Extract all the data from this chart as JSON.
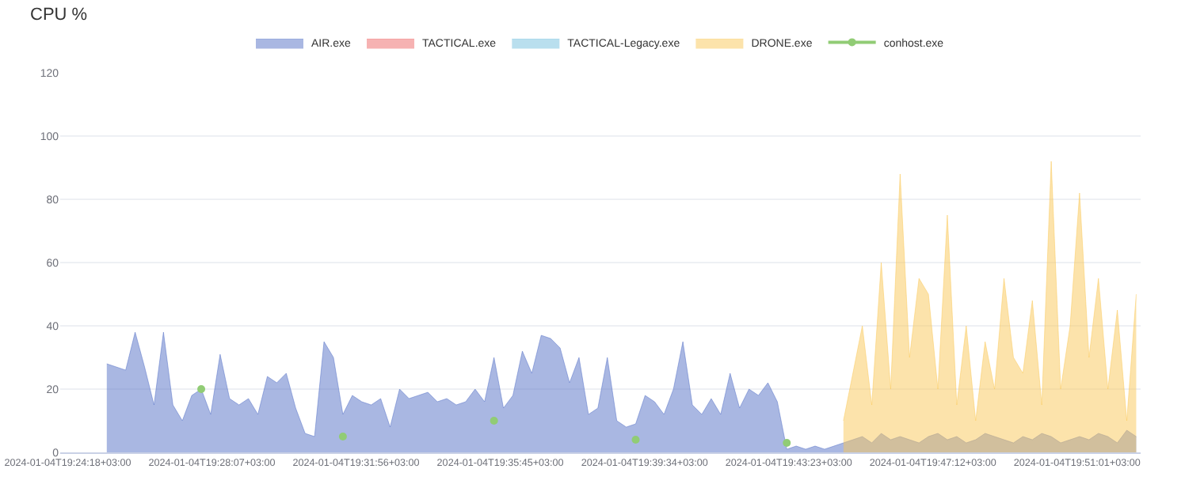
{
  "chart_data": {
    "type": "area",
    "title": "CPU %",
    "legend": "top",
    "grid": "y",
    "ylim": [
      0,
      120
    ],
    "yticks": [
      0,
      20,
      40,
      60,
      80,
      100,
      120
    ],
    "xlim": [
      "2024-01-04T19:24:06",
      "2024-01-04T19:52:42"
    ],
    "xticks": [
      {
        "value": "2024-01-04T19:24:18",
        "label": "2024-01-04T19:24:18+03:00"
      },
      {
        "value": "2024-01-04T19:28:07",
        "label": "2024-01-04T19:28:07+03:00"
      },
      {
        "value": "2024-01-04T19:31:56",
        "label": "2024-01-04T19:31:56+03:00"
      },
      {
        "value": "2024-01-04T19:35:45",
        "label": "2024-01-04T19:35:45+03:00"
      },
      {
        "value": "2024-01-04T19:39:34",
        "label": "2024-01-04T19:39:34+03:00"
      },
      {
        "value": "2024-01-04T19:43:23",
        "label": "2024-01-04T19:43:23+03:00"
      },
      {
        "value": "2024-01-04T19:47:12",
        "label": "2024-01-04T19:47:12+03:00"
      },
      {
        "value": "2024-01-04T19:51:01",
        "label": "2024-01-04T19:51:01+03:00"
      }
    ],
    "x": [
      "2024-01-04T19:25:20",
      "2024-01-04T19:25:35",
      "2024-01-04T19:25:50",
      "2024-01-04T19:26:05",
      "2024-01-04T19:26:20",
      "2024-01-04T19:26:35",
      "2024-01-04T19:26:50",
      "2024-01-04T19:27:05",
      "2024-01-04T19:27:20",
      "2024-01-04T19:27:35",
      "2024-01-04T19:27:50",
      "2024-01-04T19:28:05",
      "2024-01-04T19:28:20",
      "2024-01-04T19:28:35",
      "2024-01-04T19:28:50",
      "2024-01-04T19:29:05",
      "2024-01-04T19:29:20",
      "2024-01-04T19:29:35",
      "2024-01-04T19:29:50",
      "2024-01-04T19:30:05",
      "2024-01-04T19:30:20",
      "2024-01-04T19:30:35",
      "2024-01-04T19:30:50",
      "2024-01-04T19:31:05",
      "2024-01-04T19:31:20",
      "2024-01-04T19:31:35",
      "2024-01-04T19:31:50",
      "2024-01-04T19:32:05",
      "2024-01-04T19:32:20",
      "2024-01-04T19:32:35",
      "2024-01-04T19:32:50",
      "2024-01-04T19:33:05",
      "2024-01-04T19:33:20",
      "2024-01-04T19:33:35",
      "2024-01-04T19:33:50",
      "2024-01-04T19:34:05",
      "2024-01-04T19:34:20",
      "2024-01-04T19:34:35",
      "2024-01-04T19:34:50",
      "2024-01-04T19:35:05",
      "2024-01-04T19:35:20",
      "2024-01-04T19:35:35",
      "2024-01-04T19:35:50",
      "2024-01-04T19:36:05",
      "2024-01-04T19:36:20",
      "2024-01-04T19:36:35",
      "2024-01-04T19:36:50",
      "2024-01-04T19:37:05",
      "2024-01-04T19:37:20",
      "2024-01-04T19:37:35",
      "2024-01-04T19:37:50",
      "2024-01-04T19:38:05",
      "2024-01-04T19:38:20",
      "2024-01-04T19:38:35",
      "2024-01-04T19:38:50",
      "2024-01-04T19:39:05",
      "2024-01-04T19:39:20",
      "2024-01-04T19:39:35",
      "2024-01-04T19:39:50",
      "2024-01-04T19:40:05",
      "2024-01-04T19:40:20",
      "2024-01-04T19:40:35",
      "2024-01-04T19:40:50",
      "2024-01-04T19:41:05",
      "2024-01-04T19:41:20",
      "2024-01-04T19:41:35",
      "2024-01-04T19:41:50",
      "2024-01-04T19:42:05",
      "2024-01-04T19:42:20",
      "2024-01-04T19:42:35",
      "2024-01-04T19:42:50",
      "2024-01-04T19:43:05",
      "2024-01-04T19:43:20",
      "2024-01-04T19:43:35",
      "2024-01-04T19:43:50",
      "2024-01-04T19:44:05",
      "2024-01-04T19:44:20",
      "2024-01-04T19:44:35",
      "2024-01-04T19:44:50",
      "2024-01-04T19:45:05",
      "2024-01-04T19:45:20",
      "2024-01-04T19:45:35",
      "2024-01-04T19:45:50",
      "2024-01-04T19:46:05",
      "2024-01-04T19:46:20",
      "2024-01-04T19:46:35",
      "2024-01-04T19:46:50",
      "2024-01-04T19:47:05",
      "2024-01-04T19:47:20",
      "2024-01-04T19:47:35",
      "2024-01-04T19:47:50",
      "2024-01-04T19:48:05",
      "2024-01-04T19:48:20",
      "2024-01-04T19:48:35",
      "2024-01-04T19:48:50",
      "2024-01-04T19:49:05",
      "2024-01-04T19:49:20",
      "2024-01-04T19:49:35",
      "2024-01-04T19:49:50",
      "2024-01-04T19:50:05",
      "2024-01-04T19:50:20",
      "2024-01-04T19:50:35",
      "2024-01-04T19:50:50",
      "2024-01-04T19:51:05",
      "2024-01-04T19:51:20",
      "2024-01-04T19:51:35",
      "2024-01-04T19:51:50",
      "2024-01-04T19:52:05",
      "2024-01-04T19:52:20",
      "2024-01-04T19:52:35"
    ],
    "series": [
      {
        "name": "AIR.exe",
        "color": "#5470c6",
        "values": [
          28,
          27,
          26,
          38,
          27,
          15,
          38,
          15,
          10,
          18,
          20,
          12,
          31,
          17,
          15,
          17,
          12,
          24,
          22,
          25,
          14,
          6,
          5,
          35,
          30,
          12,
          18,
          16,
          15,
          17,
          8,
          20,
          17,
          18,
          19,
          16,
          17,
          15,
          16,
          20,
          16,
          30,
          14,
          18,
          32,
          25,
          37,
          36,
          33,
          22,
          30,
          12,
          14,
          30,
          10,
          8,
          9,
          18,
          16,
          12,
          20,
          35,
          15,
          12,
          17,
          12,
          25,
          14,
          20,
          18,
          22,
          16,
          1,
          2,
          1,
          2,
          1,
          2,
          3,
          4,
          5,
          3,
          6,
          4,
          5,
          4,
          3,
          5,
          6,
          4,
          5,
          3,
          4,
          6,
          5,
          4,
          3,
          5,
          4,
          6,
          5,
          3,
          4,
          5,
          4,
          6,
          5,
          3,
          7,
          5
        ]
      },
      {
        "name": "TACTICAL.exe",
        "color": "#ee6666",
        "values": [
          null,
          null,
          null,
          null,
          null,
          null,
          null,
          null,
          null,
          null,
          null,
          null,
          null,
          null,
          null,
          null,
          null,
          null,
          null,
          null,
          null,
          null,
          null,
          null,
          null,
          null,
          null,
          null,
          null,
          null,
          null,
          null,
          null,
          null,
          null,
          null,
          null,
          null,
          null,
          null,
          null,
          null,
          null,
          null,
          null,
          null,
          null,
          null,
          null,
          null,
          null,
          null,
          null,
          null,
          null,
          null,
          null,
          null,
          null,
          null,
          null,
          null,
          null,
          null,
          null,
          null,
          null,
          null,
          null,
          null,
          null,
          null,
          null,
          null,
          null,
          null,
          null,
          null,
          null,
          null,
          null,
          null,
          null,
          null,
          null,
          null,
          null,
          null,
          null,
          null,
          null,
          null,
          null,
          null,
          null,
          null,
          null,
          null,
          null,
          null,
          null,
          null,
          null,
          null,
          null,
          null,
          null,
          null,
          null,
          null
        ]
      },
      {
        "name": "TACTICAL-Legacy.exe",
        "color": "#73c0de",
        "values": [
          null,
          null,
          null,
          null,
          null,
          null,
          null,
          null,
          null,
          null,
          null,
          null,
          null,
          null,
          null,
          null,
          null,
          null,
          null,
          null,
          null,
          null,
          null,
          null,
          null,
          null,
          null,
          null,
          null,
          null,
          null,
          null,
          null,
          null,
          null,
          null,
          null,
          null,
          null,
          null,
          null,
          null,
          null,
          null,
          null,
          null,
          null,
          null,
          null,
          null,
          null,
          null,
          null,
          null,
          null,
          null,
          null,
          null,
          null,
          null,
          null,
          null,
          null,
          null,
          null,
          null,
          null,
          null,
          null,
          null,
          null,
          null,
          null,
          null,
          null,
          null,
          null,
          null,
          null,
          null,
          null,
          null,
          null,
          null,
          null,
          null,
          null,
          null,
          null,
          null,
          null,
          null,
          null,
          null,
          null,
          null,
          null,
          null,
          null,
          null,
          null,
          null,
          null,
          null,
          null,
          null,
          null,
          null,
          null,
          null
        ]
      },
      {
        "name": "DRONE.exe",
        "color": "#fac858",
        "values": [
          null,
          null,
          null,
          null,
          null,
          null,
          null,
          null,
          null,
          null,
          null,
          null,
          null,
          null,
          null,
          null,
          null,
          null,
          null,
          null,
          null,
          null,
          null,
          null,
          null,
          null,
          null,
          null,
          null,
          null,
          null,
          null,
          null,
          null,
          null,
          null,
          null,
          null,
          null,
          null,
          null,
          null,
          null,
          null,
          null,
          null,
          null,
          null,
          null,
          null,
          null,
          null,
          null,
          null,
          null,
          null,
          null,
          null,
          null,
          null,
          null,
          null,
          null,
          null,
          null,
          null,
          null,
          null,
          null,
          null,
          null,
          null,
          null,
          null,
          null,
          null,
          null,
          null,
          10,
          25,
          40,
          15,
          60,
          20,
          88,
          30,
          55,
          50,
          20,
          75,
          15,
          40,
          10,
          35,
          20,
          55,
          30,
          25,
          48,
          15,
          92,
          20,
          40,
          82,
          30,
          55,
          20,
          45,
          10,
          50
        ]
      },
      {
        "name": "conhost.exe",
        "type": "scatter",
        "color": "#91cc75",
        "values": [
          null,
          null,
          null,
          null,
          null,
          null,
          null,
          null,
          null,
          null,
          20,
          null,
          null,
          null,
          null,
          null,
          null,
          null,
          null,
          null,
          null,
          null,
          null,
          null,
          null,
          5,
          null,
          null,
          null,
          null,
          null,
          null,
          null,
          null,
          null,
          null,
          null,
          null,
          null,
          null,
          null,
          10,
          null,
          null,
          null,
          null,
          null,
          null,
          null,
          null,
          null,
          null,
          null,
          null,
          null,
          null,
          4,
          null,
          null,
          null,
          null,
          null,
          null,
          null,
          null,
          null,
          null,
          null,
          null,
          null,
          null,
          null,
          3,
          null,
          null,
          null,
          null,
          null,
          null,
          null,
          null,
          null,
          null,
          null,
          null,
          null,
          null,
          null,
          null,
          null,
          null,
          null,
          null,
          null,
          null,
          null,
          null,
          null,
          null,
          null,
          null,
          null,
          null,
          null,
          null,
          null,
          null,
          null,
          null,
          null
        ]
      }
    ]
  }
}
